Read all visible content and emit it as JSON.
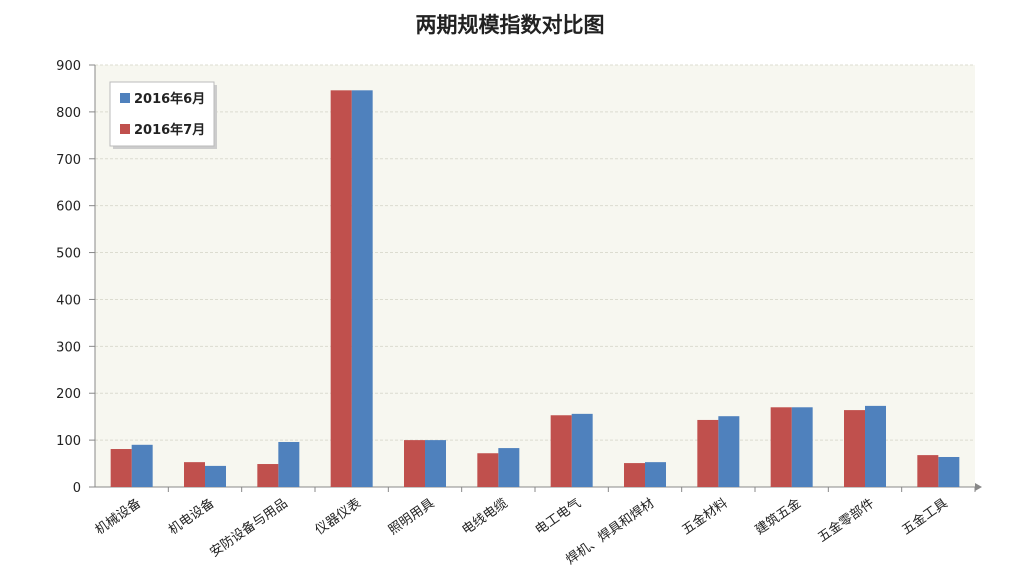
{
  "chart_data": {
    "type": "bar",
    "title": "两期规模指数对比图",
    "categories": [
      "机械设备",
      "机电设备",
      "安防设备与用品",
      "仪器仪表",
      "照明用具",
      "电线电缆",
      "电工电气",
      "焊机、焊具和焊材",
      "五金材料",
      "建筑五金",
      "五金零部件",
      "五金工具"
    ],
    "series": [
      {
        "name": "2016年6月",
        "color": "#4f81bd",
        "values": [
          90,
          45,
          96,
          846,
          100,
          83,
          156,
          53,
          151,
          170,
          173,
          64
        ]
      },
      {
        "name": "2016年7月",
        "color": "#c0504d",
        "values": [
          81,
          53,
          49,
          846,
          100,
          72,
          153,
          51,
          143,
          170,
          164,
          68
        ]
      }
    ],
    "ylim": [
      0,
      900
    ],
    "yticks": [
      0,
      100,
      200,
      300,
      400,
      500,
      600,
      700,
      800,
      900
    ],
    "grid": true,
    "legend": "top-left"
  }
}
